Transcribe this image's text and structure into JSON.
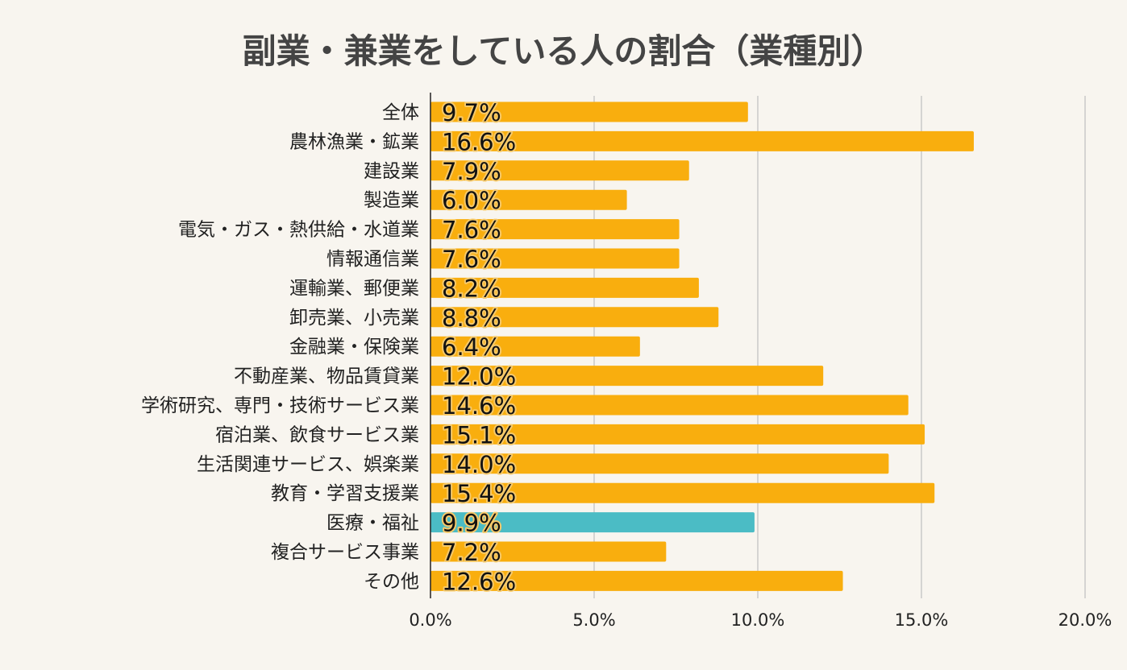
{
  "chart_data": {
    "type": "bar",
    "orientation": "horizontal",
    "title": "副業・兼業をしている人の割合（業種別）",
    "xlabel": "",
    "ylabel": "",
    "xlim": [
      0,
      20
    ],
    "x_ticks": [
      "0.0%",
      "5.0%",
      "10.0%",
      "15.0%",
      "20.0%"
    ],
    "grid": "vertical",
    "categories": [
      "全体",
      "農林漁業・鉱業",
      "建設業",
      "製造業",
      "電気・ガス・熱供給・水道業",
      "情報通信業",
      "運輸業、郵便業",
      "卸売業、小売業",
      "金融業・保険業",
      "不動産業、物品賃貸業",
      "学術研究、専門・技術サービス業",
      "宿泊業、飲食サービス業",
      "生活関連サービス、娯楽業",
      "教育・学習支援業",
      "医療・福祉",
      "複合サービス事業",
      "その他"
    ],
    "values": [
      9.7,
      16.6,
      7.9,
      6.0,
      7.6,
      7.6,
      8.2,
      8.8,
      6.4,
      12.0,
      14.6,
      15.1,
      14.0,
      15.4,
      9.9,
      7.2,
      12.6
    ],
    "value_labels": [
      "9.7%",
      "16.6%",
      "7.9%",
      "6.0%",
      "7.6%",
      "7.6%",
      "8.2%",
      "8.8%",
      "6.4%",
      "12.0%",
      "14.6%",
      "15.1%",
      "14.0%",
      "15.4%",
      "9.9%",
      "7.2%",
      "12.6%"
    ],
    "bar_color": "#f9ae0e",
    "highlight_color": "#4bbcc5",
    "highlight_index": 14
  }
}
